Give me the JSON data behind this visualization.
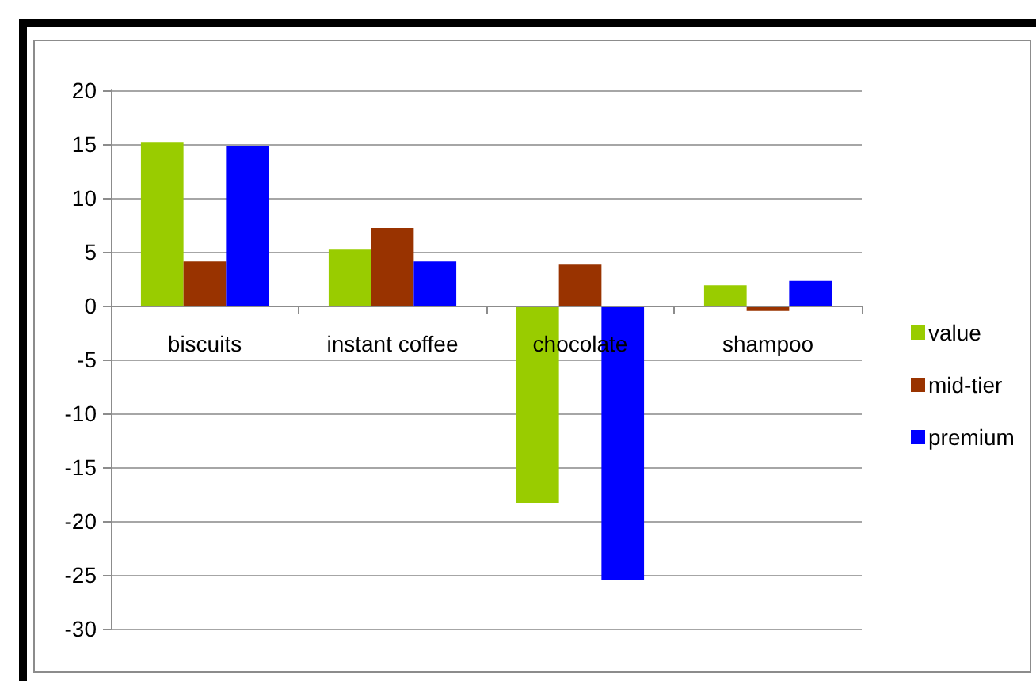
{
  "chart_data": {
    "type": "bar",
    "categories": [
      "biscuits",
      "instant coffee",
      "chocolate",
      "shampoo"
    ],
    "series": [
      {
        "name": "value",
        "color": "#99cc00",
        "values": [
          15.2,
          5.2,
          -18.3,
          1.9
        ]
      },
      {
        "name": "mid-tier",
        "color": "#993300",
        "values": [
          4.1,
          7.2,
          3.8,
          -0.5
        ]
      },
      {
        "name": "premium",
        "color": "#0000ff",
        "values": [
          14.8,
          4.1,
          -25.5,
          2.3
        ]
      }
    ],
    "ylim": [
      -30,
      20
    ],
    "yticks": [
      -30,
      -25,
      -20,
      -15,
      -10,
      -5,
      0,
      5,
      10,
      15,
      20
    ],
    "grid": "y",
    "legend": "right"
  }
}
